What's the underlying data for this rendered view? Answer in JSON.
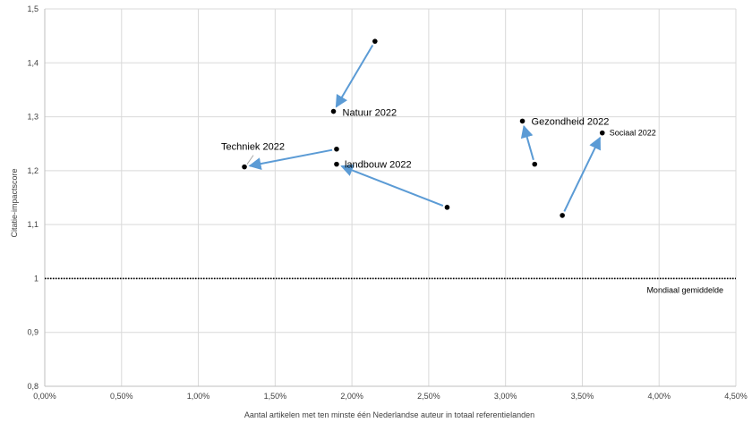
{
  "chart_data": {
    "type": "scatter",
    "xlabel": "Aantal artikelen met ten minste één Nederlandse auteur in totaal referentielanden",
    "ylabel": "Citatie-impactscore",
    "xlim": [
      0,
      4.5
    ],
    "ylim": [
      0.8,
      1.5
    ],
    "x_ticks": [
      0,
      0.5,
      1,
      1.5,
      2,
      2.5,
      3,
      3.5,
      4,
      4.5
    ],
    "x_tick_labels": [
      "0,00%",
      "0,50%",
      "1,00%",
      "1,50%",
      "2,00%",
      "2,50%",
      "3,00%",
      "3,50%",
      "4,00%",
      "4,50%"
    ],
    "y_ticks": [
      0.8,
      0.9,
      1,
      1.1,
      1.2,
      1.3,
      1.4,
      1.5
    ],
    "y_tick_labels": [
      "0,8",
      "0,9",
      "1",
      "1,1",
      "1,2",
      "1,3",
      "1,4",
      "1,5"
    ],
    "grid": true,
    "point_color": "#000000",
    "arrow_color": "#5b9bd5",
    "reference_line": {
      "y": 1.0,
      "label": "Mondiaal gemiddelde",
      "style": "dotted"
    },
    "series": [
      {
        "label": "Natuur 2022",
        "from": [
          2.15,
          1.44
        ],
        "to": [
          1.88,
          1.31
        ],
        "label_size": "normal"
      },
      {
        "label": "Techniek 2022",
        "from": [
          1.9,
          1.24
        ],
        "to": [
          1.3,
          1.207
        ],
        "label_size": "normal"
      },
      {
        "label": "landbouw 2022",
        "from": [
          2.62,
          1.132
        ],
        "to": [
          1.9,
          1.212
        ],
        "label_size": "normal"
      },
      {
        "label": "Gezondheid 2022",
        "from": [
          3.19,
          1.212
        ],
        "to": [
          3.11,
          1.292
        ],
        "label_size": "normal"
      },
      {
        "label": "Sociaal 2022",
        "from": [
          3.37,
          1.117
        ],
        "to": [
          3.63,
          1.27
        ],
        "label_size": "small"
      }
    ]
  }
}
